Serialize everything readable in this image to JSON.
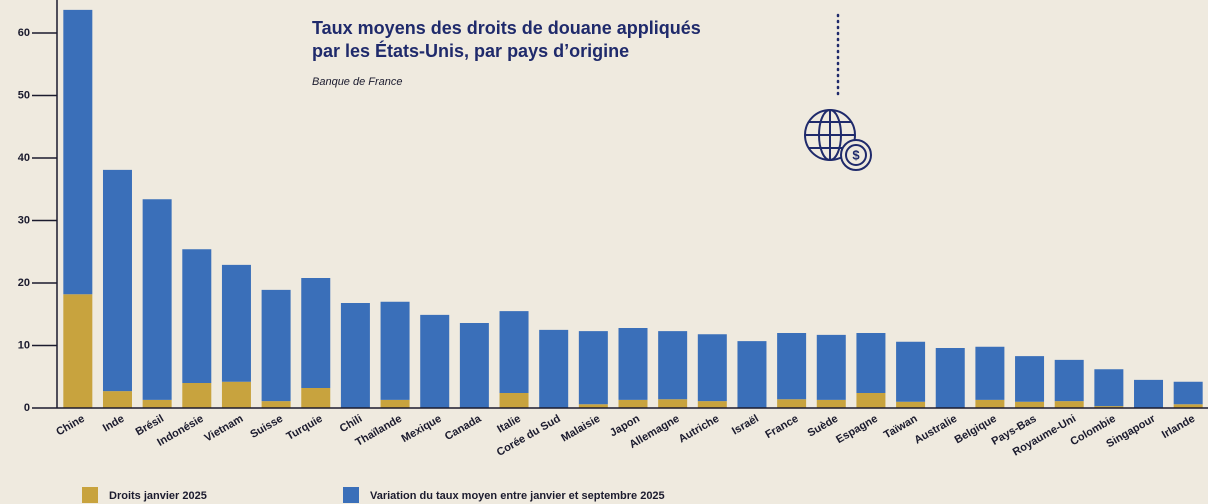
{
  "chart_data": {
    "type": "stacked_bar",
    "title": [
      "Taux moyens des droits de douane appliqués",
      "par les États-Unis, par pays d’origine"
    ],
    "subtitle": "Banque de France",
    "categories": [
      "Chine",
      "Inde",
      "Brésil",
      "Indonésie",
      "Vietnam",
      "Suisse",
      "Turquie",
      "Chili",
      "Thaïlande",
      "Mexique",
      "Canada",
      "Italie",
      "Corée du Sud",
      "Malaisie",
      "Japon",
      "Allemagne",
      "Autriche",
      "Israël",
      "France",
      "Suède",
      "Espagne",
      "Taïwan",
      "Australie",
      "Belgique",
      "Pays-Bas",
      "Royaume-Uni",
      "Colombie",
      "Singapour",
      "Irlande"
    ],
    "series": [
      {
        "name": "Droits janvier 2025",
        "color": "#c8a33e",
        "values": [
          18.2,
          2.7,
          1.3,
          4.0,
          4.2,
          1.1,
          3.2,
          0,
          1.3,
          0,
          0,
          2.4,
          0,
          0.6,
          1.3,
          1.4,
          1.1,
          0,
          1.4,
          1.3,
          2.4,
          1.0,
          0,
          1.3,
          1.0,
          1.1,
          0.3,
          0,
          0.6
        ]
      },
      {
        "name": "Variation du taux moyen entre janvier et septembre 2025",
        "color": "#3a6fb9",
        "values": [
          45.5,
          35.4,
          32.1,
          21.4,
          18.7,
          17.8,
          17.6,
          16.8,
          15.7,
          14.9,
          13.6,
          13.1,
          12.5,
          11.7,
          11.5,
          10.9,
          10.7,
          10.7,
          10.6,
          10.4,
          9.6,
          9.6,
          9.6,
          8.5,
          7.3,
          6.6,
          5.9,
          4.5,
          3.6
        ]
      }
    ],
    "ylim": [
      0,
      64
    ],
    "yticks": [
      0,
      10,
      20,
      30,
      40,
      50,
      60
    ],
    "grid": false
  }
}
